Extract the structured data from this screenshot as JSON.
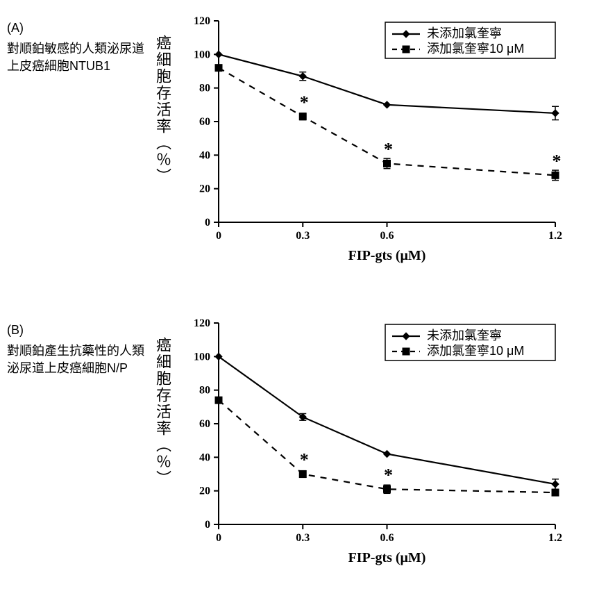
{
  "global": {
    "bg": "#ffffff",
    "line_color": "#000000",
    "font_family_axis": "serif",
    "font_family_labels": "sans-serif"
  },
  "xaxis": {
    "title": "FIP-gts (μM)",
    "ticks": [
      0,
      0.3,
      0.6,
      1.2
    ],
    "lim": [
      0,
      1.2
    ],
    "title_fontsize": 20,
    "tick_fontsize": 16
  },
  "yaxis": {
    "title_vertical": "癌細胞存活率（％）",
    "ticks": [
      0,
      20,
      40,
      60,
      80,
      100,
      120
    ],
    "lim": [
      0,
      120
    ],
    "title_fontsize": 22,
    "tick_fontsize": 16
  },
  "legend": {
    "items": [
      {
        "label": "未添加氯奎寧",
        "dash": "solid",
        "marker": "diamond"
      },
      {
        "label": "添加氯奎寧10 μM",
        "dash": "dash",
        "marker": "square"
      }
    ]
  },
  "panels": {
    "A": {
      "tag": "(A)",
      "side_text": "對順鉑敏感的人類泌尿道上皮癌細胞NTUB1",
      "series": [
        {
          "name": "no_cq",
          "dash": "solid",
          "line_width": 2.2,
          "marker": "diamond",
          "x": [
            0,
            0.3,
            0.6,
            1.2
          ],
          "y": [
            100,
            87,
            70,
            65
          ],
          "err": [
            0,
            2.5,
            0,
            4
          ],
          "asterisk": []
        },
        {
          "name": "cq10",
          "dash": "dash",
          "line_width": 2.2,
          "marker": "square",
          "x": [
            0,
            0.3,
            0.6,
            1.2
          ],
          "y": [
            92,
            63,
            35,
            28
          ],
          "err": [
            0,
            2,
            3,
            3
          ],
          "asterisk": [
            0.3,
            0.6,
            1.2
          ]
        }
      ]
    },
    "B": {
      "tag": "(B)",
      "side_text": "對順鉑產生抗藥性的人類泌尿道上皮癌細胞N/P",
      "series": [
        {
          "name": "no_cq",
          "dash": "solid",
          "line_width": 2.2,
          "marker": "diamond",
          "x": [
            0,
            0.3,
            0.6,
            1.2
          ],
          "y": [
            100,
            64,
            42,
            24
          ],
          "err": [
            0,
            2,
            0,
            3
          ],
          "asterisk": []
        },
        {
          "name": "cq10",
          "dash": "dash",
          "line_width": 2.2,
          "marker": "square",
          "x": [
            0,
            0.3,
            0.6,
            1.2
          ],
          "y": [
            74,
            30,
            21,
            19
          ],
          "err": [
            0,
            2,
            2.5,
            0
          ],
          "asterisk": [
            0.3,
            0.6
          ]
        }
      ]
    }
  }
}
